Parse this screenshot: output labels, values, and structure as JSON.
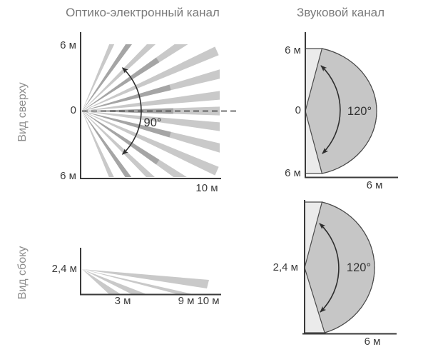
{
  "titles": {
    "optical": "Оптико-электронный канал",
    "acoustic": "Звуковой канал"
  },
  "row_labels": {
    "top": "Вид сверху",
    "bottom": "Вид сбоку"
  },
  "optical_top": {
    "y_max_label": "6 м",
    "zero_label": "0",
    "y_min_label": "6 м",
    "x_label": "10 м",
    "angle_label": "90°",
    "beams": [
      {
        "angle": 66,
        "shade": "light"
      },
      {
        "angle": 55,
        "shade": "dark"
      },
      {
        "angle": 44,
        "shade": "light"
      },
      {
        "angle": 34,
        "shade": "dark"
      },
      {
        "angle": 24,
        "shade": "light"
      },
      {
        "angle": 15,
        "shade": "dark"
      },
      {
        "angle": 6.5,
        "shade": "light"
      },
      {
        "angle": 0,
        "shade": "dark"
      },
      {
        "angle": -6.5,
        "shade": "light"
      },
      {
        "angle": -15,
        "shade": "dark"
      },
      {
        "angle": -24,
        "shade": "light"
      },
      {
        "angle": -34,
        "shade": "dark"
      },
      {
        "angle": -44,
        "shade": "light"
      },
      {
        "angle": -55,
        "shade": "dark"
      },
      {
        "angle": -66,
        "shade": "light"
      }
    ]
  },
  "optical_side": {
    "height_label": "2,4 м",
    "x_labels": [
      "3 м",
      "9 м",
      "10 м"
    ],
    "beams_m": [
      [
        2.1,
        3.0
      ],
      [
        3.85,
        5.0
      ],
      [
        7.4,
        8.6
      ]
    ],
    "far_beam_end_m": 10
  },
  "acoustic_top": {
    "y_max_label": "6 м",
    "zero_label": "0",
    "y_min_label": "6 м",
    "x_label": "6 м",
    "angle_label": "120°"
  },
  "acoustic_side": {
    "height_label": "2,4 м",
    "x_label": "6 м",
    "angle_label": "120°"
  },
  "colors": {
    "beam_light": "#c9c9c9",
    "beam_dark": "#a5a5a5",
    "sector_fill": "#c6c6c6",
    "sector_light": "#ebebeb",
    "outline": "#4a4a4a",
    "axis": "#3a3a3a",
    "arrow": "#2e2e2e"
  },
  "chart_data": {
    "type": "diagram",
    "panels": [
      {
        "channel": "Оптико-электронный канал",
        "view": "Вид сверху",
        "coverage_angle_deg": 90,
        "range_m": 10,
        "half_width_m": 6
      },
      {
        "channel": "Оптико-электронный канал",
        "view": "Вид сбоку",
        "mount_height_m": 2.4,
        "beam_floor_distances_m": [
          3,
          9,
          10
        ]
      },
      {
        "channel": "Звуковой канал",
        "view": "Вид сверху",
        "coverage_angle_deg": 120,
        "radius_m": 6,
        "half_width_m": 6
      },
      {
        "channel": "Звуковой канал",
        "view": "Вид сбоку",
        "coverage_angle_deg": 120,
        "mount_height_m": 2.4,
        "range_m": 6
      }
    ]
  }
}
